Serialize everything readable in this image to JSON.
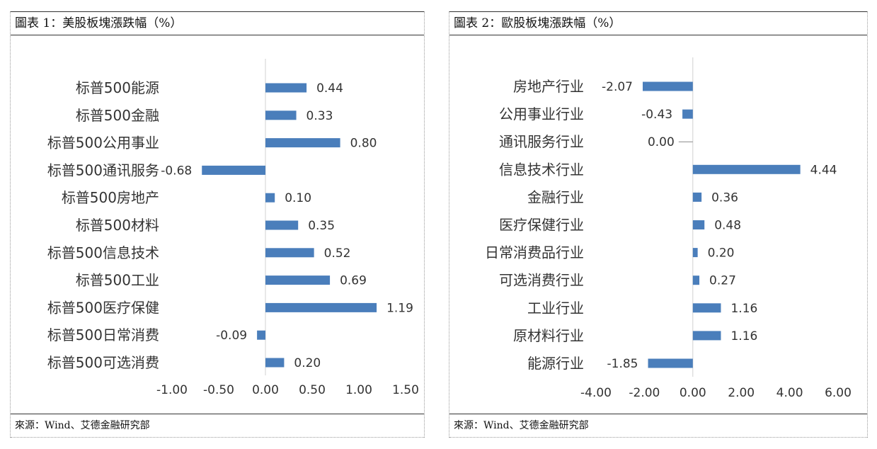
{
  "panels": [
    {
      "title": "圖表 1：美股板塊漲跌幅（%）",
      "source": "來源：Wind、艾德金融研究部"
    },
    {
      "title": "圖表 2：歐股板塊漲跌幅（%）",
      "source": "來源：Wind、艾德金融研究部"
    }
  ],
  "chart_data": [
    {
      "type": "bar",
      "orientation": "horizontal",
      "bar_color": "#4A7EBB",
      "categories": [
        "标普500能源",
        "标普500金融",
        "标普500公用事业",
        "标普500通讯服务",
        "标普500房地产",
        "标普500材料",
        "标普500信息技术",
        "标普500工业",
        "标普500医疗保健",
        "标普500日常消费",
        "标普500可选消费"
      ],
      "values": [
        0.44,
        0.33,
        0.8,
        -0.68,
        0.1,
        0.35,
        0.52,
        0.69,
        1.19,
        -0.09,
        0.2
      ],
      "value_labels": [
        "0.44",
        "0.33",
        "0.80",
        "-0.68",
        "0.10",
        "0.35",
        "0.52",
        "0.69",
        "1.19",
        "-0.09",
        "0.20"
      ],
      "xlim": [
        -1.0,
        1.5
      ],
      "ticks": [
        -1.0,
        -0.5,
        0.0,
        0.5,
        1.0,
        1.5
      ],
      "tick_labels": [
        "-1.00",
        "-0.50",
        "0.00",
        "0.50",
        "1.00",
        "1.50"
      ],
      "grid": false
    },
    {
      "type": "bar",
      "orientation": "horizontal",
      "bar_color": "#4A7EBB",
      "categories": [
        "房地产行业",
        "公用事业行业",
        "通讯服务行业",
        "信息技术行业",
        "金融行业",
        "医疗保健行业",
        "日常消费品行业",
        "可选消费行业",
        "工业行业",
        "原材料行业",
        "能源行业"
      ],
      "values": [
        -2.07,
        -0.43,
        0.0,
        4.44,
        0.36,
        0.48,
        0.2,
        0.27,
        1.16,
        1.16,
        -1.85
      ],
      "value_labels": [
        "-2.07",
        "-0.43",
        "0.00",
        "4.44",
        "0.36",
        "0.48",
        "0.20",
        "0.27",
        "1.16",
        "1.16",
        "-1.85"
      ],
      "xlim": [
        -4.0,
        6.0
      ],
      "ticks": [
        -4.0,
        -2.0,
        0.0,
        2.0,
        4.0,
        6.0
      ],
      "tick_labels": [
        "-4.00",
        "-2.00",
        "0.00",
        "2.00",
        "4.00",
        "6.00"
      ],
      "grid": false
    }
  ]
}
